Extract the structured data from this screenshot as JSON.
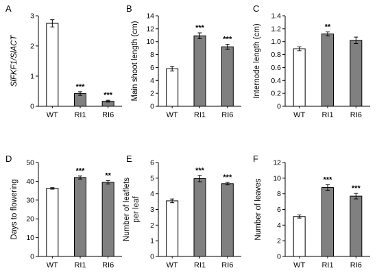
{
  "chart_data": [
    {
      "panel": "A",
      "type": "bar",
      "categories": [
        "WT",
        "RI1",
        "RI6"
      ],
      "values": [
        2.75,
        0.42,
        0.17
      ],
      "errors": [
        0.12,
        0.06,
        0.03
      ],
      "significance": [
        "",
        "***",
        "***"
      ],
      "ylabel": "SlFKF1/SlACT",
      "ylabel_italic": true,
      "ylim": [
        0,
        3
      ],
      "yticks": [
        0,
        1,
        2,
        3
      ],
      "bar_colors": [
        "#ffffff",
        "#808080",
        "#808080"
      ]
    },
    {
      "panel": "B",
      "type": "bar",
      "categories": [
        "WT",
        "RI1",
        "RI6"
      ],
      "values": [
        5.8,
        10.9,
        9.2
      ],
      "errors": [
        0.35,
        0.45,
        0.4
      ],
      "significance": [
        "",
        "***",
        "***"
      ],
      "ylabel": "Main shoot length (cm)",
      "ylim": [
        0,
        14
      ],
      "yticks": [
        0,
        2,
        4,
        6,
        8,
        10,
        12,
        14
      ],
      "bar_colors": [
        "#ffffff",
        "#808080",
        "#808080"
      ]
    },
    {
      "panel": "C",
      "type": "bar",
      "categories": [
        "WT",
        "RI1",
        "RI6"
      ],
      "values": [
        0.89,
        1.12,
        1.02
      ],
      "errors": [
        0.03,
        0.03,
        0.05
      ],
      "significance": [
        "",
        "**",
        ""
      ],
      "ylabel": "Internode length (cm)",
      "ylim": [
        0,
        1.4
      ],
      "yticks": [
        "0",
        "0.2",
        "0.4",
        "0.6",
        "0.8",
        "1.0",
        "1.2",
        "1.4"
      ],
      "bar_colors": [
        "#ffffff",
        "#808080",
        "#808080"
      ]
    },
    {
      "panel": "D",
      "type": "bar",
      "categories": [
        "WT",
        "RI1",
        "RI6"
      ],
      "values": [
        36.2,
        42.0,
        39.5
      ],
      "errors": [
        0.4,
        0.8,
        0.9
      ],
      "significance": [
        "",
        "***",
        "**"
      ],
      "ylabel": "Days to flowering",
      "ylim": [
        0,
        50
      ],
      "yticks": [
        0,
        10,
        20,
        30,
        40,
        50
      ],
      "bar_colors": [
        "#ffffff",
        "#808080",
        "#808080"
      ]
    },
    {
      "panel": "E",
      "type": "bar",
      "categories": [
        "WT",
        "RI1",
        "RI6"
      ],
      "values": [
        3.55,
        4.97,
        4.65
      ],
      "errors": [
        0.12,
        0.2,
        0.08
      ],
      "significance": [
        "",
        "***",
        "***"
      ],
      "ylabel": "Number of leaflets per leaf",
      "ylabel_lines": [
        "Number of leaflets",
        "per leaf"
      ],
      "ylim": [
        0,
        6
      ],
      "yticks": [
        0,
        1,
        2,
        3,
        4,
        5,
        6
      ],
      "bar_colors": [
        "#ffffff",
        "#808080",
        "#808080"
      ]
    },
    {
      "panel": "F",
      "type": "bar",
      "categories": [
        "WT",
        "RI1",
        "RI6"
      ],
      "values": [
        5.1,
        8.8,
        7.7
      ],
      "errors": [
        0.2,
        0.35,
        0.35
      ],
      "significance": [
        "",
        "***",
        "***"
      ],
      "ylabel": "Number of leaves",
      "ylim": [
        0,
        12
      ],
      "yticks": [
        0,
        2,
        4,
        6,
        8,
        10,
        12
      ],
      "bar_colors": [
        "#ffffff",
        "#808080",
        "#808080"
      ]
    }
  ]
}
